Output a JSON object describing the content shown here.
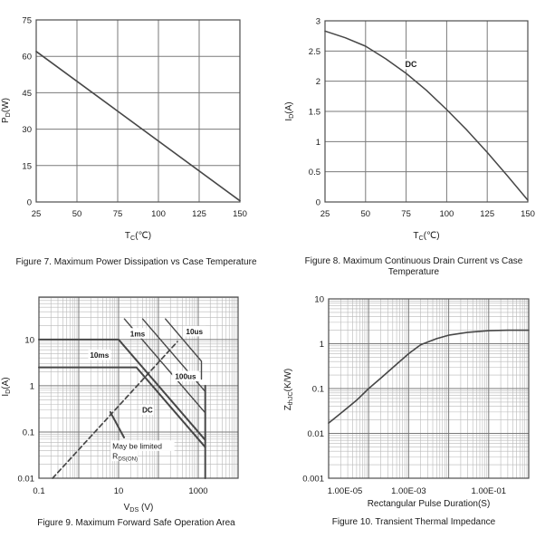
{
  "colors": {
    "background": "#ffffff",
    "border": "#4d4d4d",
    "grid_major": "#7a7a7a",
    "grid_minor": "#b9b9b9",
    "curve": "#474747",
    "text": "#1b1b1b",
    "label_bg": "#ffffff"
  },
  "chart_data": [
    {
      "id": "fig7",
      "type": "line",
      "caption": "Figure 7. Maximum Power Dissipation vs Case Temperature",
      "xlabel": {
        "base": "T",
        "sub": "C",
        "rest": "(℃)"
      },
      "ylabel": {
        "base": "P",
        "sub": "D",
        "rest": "(W)"
      },
      "xscale": "linear",
      "yscale": "linear",
      "xlim": [
        25,
        150
      ],
      "ylim": [
        0,
        75
      ],
      "xgrid": [
        25,
        50,
        75,
        100,
        125,
        150
      ],
      "ygrid": [
        0,
        15,
        30,
        45,
        60,
        75
      ],
      "xticks": [
        {
          "v": 25,
          "l": "25"
        },
        {
          "v": 50,
          "l": "50"
        },
        {
          "v": 75,
          "l": "75"
        },
        {
          "v": 100,
          "l": "100"
        },
        {
          "v": 125,
          "l": "125"
        },
        {
          "v": 150,
          "l": "150"
        }
      ],
      "yticks": [
        {
          "v": 0,
          "l": "0"
        },
        {
          "v": 15,
          "l": "15"
        },
        {
          "v": 30,
          "l": "30"
        },
        {
          "v": 45,
          "l": "45"
        },
        {
          "v": 60,
          "l": "60"
        },
        {
          "v": 75,
          "l": "75"
        }
      ],
      "minor": false,
      "series": [
        {
          "name": "power-derating",
          "width": 1.6,
          "x": [
            25,
            150
          ],
          "y": [
            62,
            0.5
          ]
        }
      ],
      "annotations": []
    },
    {
      "id": "fig8",
      "type": "line",
      "caption": "Figure 8. Maximum Continuous Drain Current vs Case Temperature",
      "xlabel": {
        "base": "T",
        "sub": "C",
        "rest": "(℃)"
      },
      "ylabel": {
        "base": "I",
        "sub": "D",
        "rest": "(A)"
      },
      "xscale": "linear",
      "yscale": "linear",
      "xlim": [
        25,
        150
      ],
      "ylim": [
        0,
        3
      ],
      "xgrid": [
        25,
        50,
        75,
        100,
        125,
        150
      ],
      "ygrid": [
        0,
        0.5,
        1,
        1.5,
        2,
        2.5,
        3
      ],
      "xticks": [
        {
          "v": 25,
          "l": "25"
        },
        {
          "v": 50,
          "l": "50"
        },
        {
          "v": 75,
          "l": "75"
        },
        {
          "v": 100,
          "l": "100"
        },
        {
          "v": 125,
          "l": "125"
        },
        {
          "v": 150,
          "l": "150"
        }
      ],
      "yticks": [
        {
          "v": 0,
          "l": "0"
        },
        {
          "v": 0.5,
          "l": "0.5"
        },
        {
          "v": 1,
          "l": "1"
        },
        {
          "v": 1.5,
          "l": "1.5"
        },
        {
          "v": 2,
          "l": "2"
        },
        {
          "v": 2.5,
          "l": "2.5"
        },
        {
          "v": 3,
          "l": "3"
        }
      ],
      "minor": false,
      "series": [
        {
          "name": "dc-drain-current",
          "width": 1.5,
          "x": [
            25,
            37.5,
            50,
            62.5,
            75,
            87.5,
            100,
            112.5,
            125,
            137.5,
            150
          ],
          "y": [
            2.83,
            2.72,
            2.58,
            2.37,
            2.13,
            1.85,
            1.53,
            1.19,
            0.82,
            0.43,
            0.03
          ]
        }
      ],
      "annotations": [
        {
          "text": "DC",
          "x": 78,
          "y": 2.28,
          "bold": true,
          "bg": true,
          "align": "middle",
          "size": 9
        }
      ]
    },
    {
      "id": "fig9",
      "type": "line",
      "caption": "Figure 9. Maximum Forward Safe Operation Area",
      "xlabel": {
        "base": "V",
        "sub": "DS",
        "rest": " (V)"
      },
      "ylabel": {
        "base": "I",
        "sub": "D",
        "rest": "(A)"
      },
      "xscale": "log",
      "yscale": "log",
      "xlim": [
        0.1,
        10000
      ],
      "ylim": [
        0.01,
        83
      ],
      "xgrid": [
        0.1,
        1,
        10,
        100,
        1000,
        10000
      ],
      "ygrid": [
        0.01,
        0.1,
        1,
        10
      ],
      "xticks": [
        {
          "v": 0.1,
          "l": "0.1"
        },
        {
          "v": 10,
          "l": "10"
        },
        {
          "v": 1000,
          "l": "1000"
        }
      ],
      "yticks": [
        {
          "v": 0.01,
          "l": "0.01"
        },
        {
          "v": 0.1,
          "l": "0.1"
        },
        {
          "v": 1,
          "l": "1"
        },
        {
          "v": 10,
          "l": "10"
        }
      ],
      "minor": true,
      "series": [
        {
          "name": "rdson-limit-line",
          "dashed": true,
          "width": 1.7,
          "x": [
            0.22,
            300
          ],
          "y": [
            0.01,
            9
          ]
        },
        {
          "name": "pulse-10ms",
          "width": 2,
          "x": [
            0.1,
            10,
            1500
          ],
          "y": [
            10,
            10,
            0.067
          ]
        },
        {
          "name": "pulse-1ms",
          "width": 1.4,
          "x": [
            14,
            1500
          ],
          "y": [
            28,
            0.26
          ]
        },
        {
          "name": "pulse-100us",
          "width": 1.4,
          "x": [
            40,
            1500
          ],
          "y": [
            28,
            0.75
          ]
        },
        {
          "name": "pulse-10us",
          "width": 1.4,
          "x": [
            150,
            1200,
            1200
          ],
          "y": [
            28,
            3.4,
            1.4
          ]
        },
        {
          "name": "dc-limit",
          "width": 2,
          "x": [
            0.1,
            28,
            1500
          ],
          "y": [
            2.5,
            2.5,
            0.047
          ]
        },
        {
          "name": "max-vds-line",
          "width": 2,
          "x": [
            1500,
            1500
          ],
          "y": [
            1,
            0.01
          ]
        },
        {
          "name": "rdson-pointer",
          "width": 2,
          "x": [
            6.2,
            13.7
          ],
          "y": [
            0.27,
            0.076
          ]
        }
      ],
      "annotations": [
        {
          "text": "10ms",
          "x": 3.3,
          "y": 4.6,
          "bold": true,
          "bg": true,
          "align": "middle",
          "size": 8.2
        },
        {
          "text": "1ms",
          "x": 30,
          "y": 13.5,
          "bold": true,
          "bg": true,
          "align": "middle",
          "size": 8.2
        },
        {
          "text": "10us",
          "x": 800,
          "y": 15,
          "bold": true,
          "bg": true,
          "align": "middle",
          "size": 8.2
        },
        {
          "text": "100us",
          "x": 480,
          "y": 1.6,
          "bold": true,
          "bg": true,
          "align": "middle",
          "size": 8.2
        },
        {
          "text": "DC",
          "x": 53,
          "y": 0.3,
          "bold": true,
          "bg": true,
          "align": "middle",
          "size": 8.2
        },
        {
          "text": "May be limited",
          "x": 7,
          "y": 0.05,
          "bold": false,
          "bg": true,
          "align": "start",
          "size": 8.5
        },
        {
          "text": "R",
          "sub": "DS(ON)",
          "x": 7,
          "y": 0.03,
          "bold": false,
          "bg": true,
          "align": "start",
          "size": 8.5
        }
      ]
    },
    {
      "id": "fig10",
      "type": "line",
      "caption": "Figure 10. Transient Thermal Impedance",
      "xlabel": {
        "base": "Rectangular Pulse Duration(S)",
        "sub": "",
        "rest": ""
      },
      "ylabel": {
        "base": "Z",
        "sub": "thJC",
        "rest": "(K/W)"
      },
      "xscale": "log",
      "yscale": "log",
      "xlim": [
        1e-05,
        1
      ],
      "ylim": [
        0.001,
        10
      ],
      "xgrid": [
        1e-05,
        0.0001,
        0.001,
        0.01,
        0.1,
        1
      ],
      "ygrid": [
        0.001,
        0.01,
        0.1,
        1,
        10
      ],
      "xticks": [
        {
          "v": 1e-05,
          "l": "1.00E-05",
          "dx": 18
        },
        {
          "v": 0.001,
          "l": "1.00E-03"
        },
        {
          "v": 0.1,
          "l": "1.00E-01"
        }
      ],
      "yticks": [
        {
          "v": 0.001,
          "l": "0.001"
        },
        {
          "v": 0.01,
          "l": "0.01"
        },
        {
          "v": 0.1,
          "l": "0.1"
        },
        {
          "v": 1,
          "l": "1"
        },
        {
          "v": 10,
          "l": "10"
        }
      ],
      "minor": true,
      "series": [
        {
          "name": "zth-curve",
          "width": 1.6,
          "x": [
            1e-05,
            2e-05,
            5e-05,
            0.0001,
            0.0002,
            0.0005,
            0.001,
            0.002,
            0.005,
            0.01,
            0.03,
            0.1,
            0.3,
            1
          ],
          "y": [
            0.017,
            0.028,
            0.055,
            0.1,
            0.17,
            0.35,
            0.6,
            0.95,
            1.3,
            1.55,
            1.8,
            1.95,
            2.0,
            2.0
          ]
        }
      ],
      "annotations": []
    }
  ]
}
